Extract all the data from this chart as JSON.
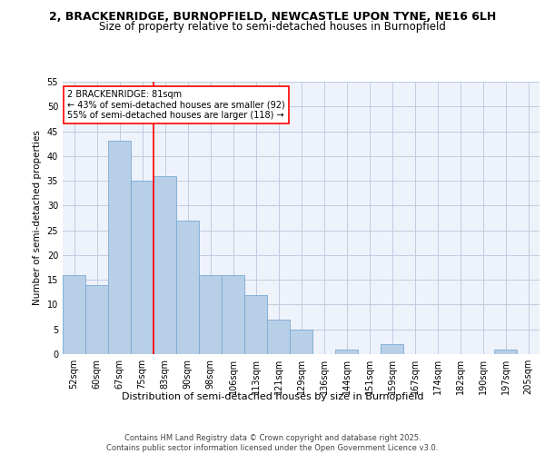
{
  "title_line1": "2, BRACKENRIDGE, BURNOPFIELD, NEWCASTLE UPON TYNE, NE16 6LH",
  "title_line2": "Size of property relative to semi-detached houses in Burnopfield",
  "xlabel": "Distribution of semi-detached houses by size in Burnopfield",
  "ylabel": "Number of semi-detached properties",
  "categories": [
    "52sqm",
    "60sqm",
    "67sqm",
    "75sqm",
    "83sqm",
    "90sqm",
    "98sqm",
    "106sqm",
    "113sqm",
    "121sqm",
    "129sqm",
    "136sqm",
    "144sqm",
    "151sqm",
    "159sqm",
    "167sqm",
    "174sqm",
    "182sqm",
    "190sqm",
    "197sqm",
    "205sqm"
  ],
  "values": [
    16,
    14,
    43,
    35,
    36,
    27,
    16,
    16,
    12,
    7,
    5,
    0,
    1,
    0,
    2,
    0,
    0,
    0,
    0,
    1,
    0
  ],
  "bar_color": "#b8cfe8",
  "bar_edge_color": "#7aaad0",
  "subject_line_index": 4,
  "subject_label": "2 BRACKENRIDGE: 81sqm",
  "pct_smaller": 43,
  "n_smaller": 92,
  "pct_larger": 55,
  "n_larger": 118,
  "ylim": [
    0,
    55
  ],
  "yticks": [
    0,
    5,
    10,
    15,
    20,
    25,
    30,
    35,
    40,
    45,
    50,
    55
  ],
  "footer": "Contains HM Land Registry data © Crown copyright and database right 2025.\nContains public sector information licensed under the Open Government Licence v3.0.",
  "bg_color": "#eef2fb",
  "grid_color": "#c0cce0",
  "title_fontsize": 9,
  "subtitle_fontsize": 8.5,
  "xlabel_fontsize": 8,
  "ylabel_fontsize": 7.5,
  "tick_fontsize": 7,
  "annot_fontsize": 7,
  "footer_fontsize": 6
}
